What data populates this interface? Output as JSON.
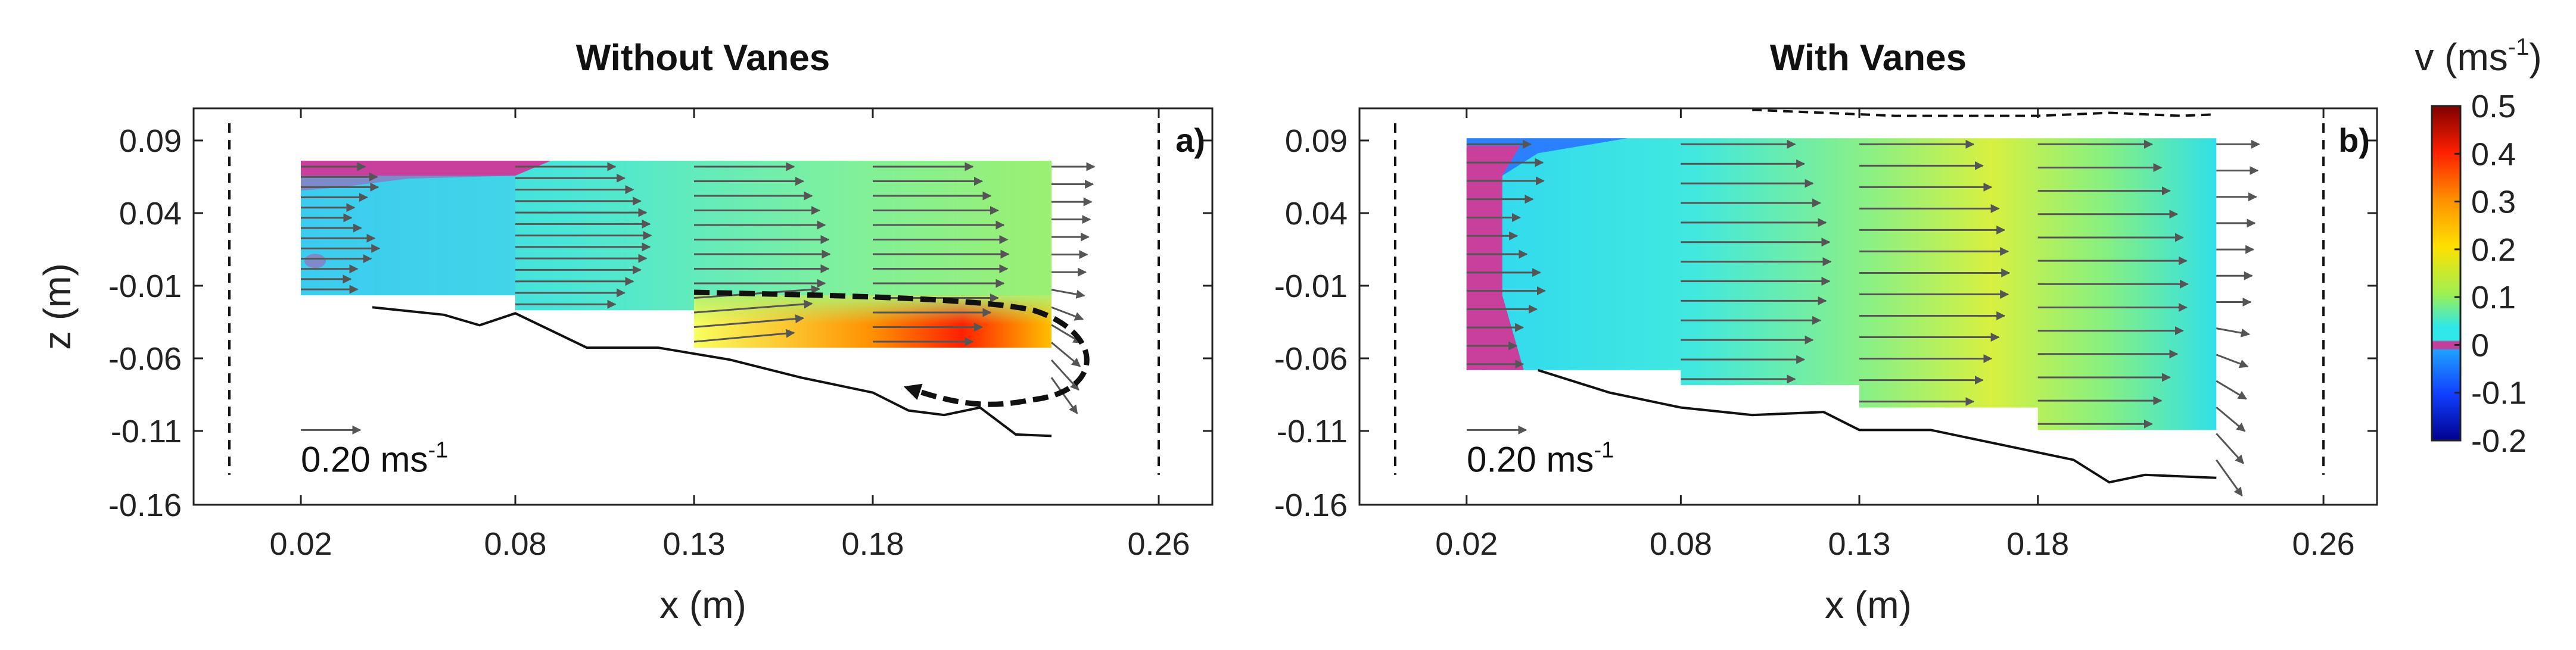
{
  "chart_data": [
    {
      "type": "heatmap",
      "panel": "a)",
      "title": "Without Vanes",
      "xlabel": "x (m)",
      "ylabel": "z (m)",
      "x_ticks": [
        "0.02",
        "0.08",
        "0.13",
        "0.18",
        "0.26"
      ],
      "y_ticks": [
        "0.09",
        "0.04",
        "-0.01",
        "-0.06",
        "-0.11",
        "-0.16"
      ],
      "xlim": [
        -0.01,
        0.275
      ],
      "ylim": [
        -0.16,
        0.105
      ],
      "reference_vector": {
        "label_value": "0.20 ms",
        "label_exp": "-1",
        "magnitude": 0.2
      },
      "dashed_boundaries_x": [
        0.0,
        0.26
      ],
      "field_x_range": [
        0.02,
        0.23
      ],
      "field_top": 0.07,
      "field_bottom_steps": [
        {
          "x0": 0.02,
          "x1": 0.08,
          "z": -0.02
        },
        {
          "x0": 0.08,
          "x1": 0.13,
          "z": -0.03
        },
        {
          "x0": 0.13,
          "x1": 0.18,
          "z": -0.055
        },
        {
          "x0": 0.18,
          "x1": 0.23,
          "z": -0.055
        }
      ],
      "bed_profile": [
        [
          0.04,
          -0.028
        ],
        [
          0.06,
          -0.033
        ],
        [
          0.07,
          -0.04
        ],
        [
          0.08,
          -0.032
        ],
        [
          0.1,
          -0.055
        ],
        [
          0.12,
          -0.055
        ],
        [
          0.14,
          -0.063
        ],
        [
          0.16,
          -0.075
        ],
        [
          0.18,
          -0.085
        ],
        [
          0.19,
          -0.097
        ],
        [
          0.2,
          -0.1
        ],
        [
          0.21,
          -0.095
        ],
        [
          0.22,
          -0.113
        ],
        [
          0.23,
          -0.114
        ]
      ],
      "vector_columns_x": [
        0.02,
        0.08,
        0.13,
        0.18,
        0.23
      ],
      "annotation": "dashed recirculation arrow near x 0.13 to 0.24"
    },
    {
      "type": "heatmap",
      "panel": "b)",
      "title": "With Vanes",
      "xlabel": "x (m)",
      "ylabel": "z (m)",
      "x_ticks": [
        "0.02",
        "0.08",
        "0.13",
        "0.18",
        "0.26"
      ],
      "y_ticks": [
        "0.09",
        "0.04",
        "-0.01",
        "-0.06",
        "-0.11",
        "-0.16"
      ],
      "xlim": [
        -0.01,
        0.275
      ],
      "ylim": [
        -0.16,
        0.105
      ],
      "reference_vector": {
        "label_value": "0.20 ms",
        "label_exp": "-1",
        "magnitude": 0.2
      },
      "dashed_boundaries_x": [
        0.0,
        0.26
      ],
      "field_x_range": [
        0.02,
        0.23
      ],
      "field_top": 0.085,
      "field_bottom_steps": [
        {
          "x0": 0.02,
          "x1": 0.08,
          "z": -0.07
        },
        {
          "x0": 0.08,
          "x1": 0.13,
          "z": -0.08
        },
        {
          "x0": 0.13,
          "x1": 0.18,
          "z": -0.095
        },
        {
          "x0": 0.18,
          "x1": 0.23,
          "z": -0.11
        }
      ],
      "bed_profile": [
        [
          0.04,
          -0.07
        ],
        [
          0.06,
          -0.085
        ],
        [
          0.08,
          -0.095
        ],
        [
          0.1,
          -0.1
        ],
        [
          0.12,
          -0.098
        ],
        [
          0.13,
          -0.11
        ],
        [
          0.15,
          -0.11
        ],
        [
          0.17,
          -0.12
        ],
        [
          0.19,
          -0.13
        ],
        [
          0.2,
          -0.145
        ],
        [
          0.21,
          -0.14
        ],
        [
          0.23,
          -0.142
        ]
      ],
      "surface_profile": [
        [
          0.1,
          0.104
        ],
        [
          0.14,
          0.1
        ],
        [
          0.18,
          0.1
        ],
        [
          0.2,
          0.102
        ],
        [
          0.22,
          0.1
        ],
        [
          0.23,
          0.101
        ]
      ],
      "vector_columns_x": [
        0.02,
        0.08,
        0.13,
        0.18,
        0.23
      ]
    }
  ],
  "colorbar": {
    "label_prefix": "v (ms",
    "label_exp": "-1",
    "label_suffix": ")",
    "range": [
      -0.2,
      0.5
    ],
    "ticks": [
      "0.5",
      "0.4",
      "0.3",
      "0.2",
      "0.1",
      "0",
      "-0.1",
      "-0.2"
    ],
    "colors": {
      "max": "#7f0000",
      "high": "#ff2000",
      "mid_high": "#ffd000",
      "mid": "#a0f050",
      "low": "#30e8e8",
      "neutral": "#c0409c",
      "negative": "#2060ff",
      "min": "#00008f"
    }
  }
}
